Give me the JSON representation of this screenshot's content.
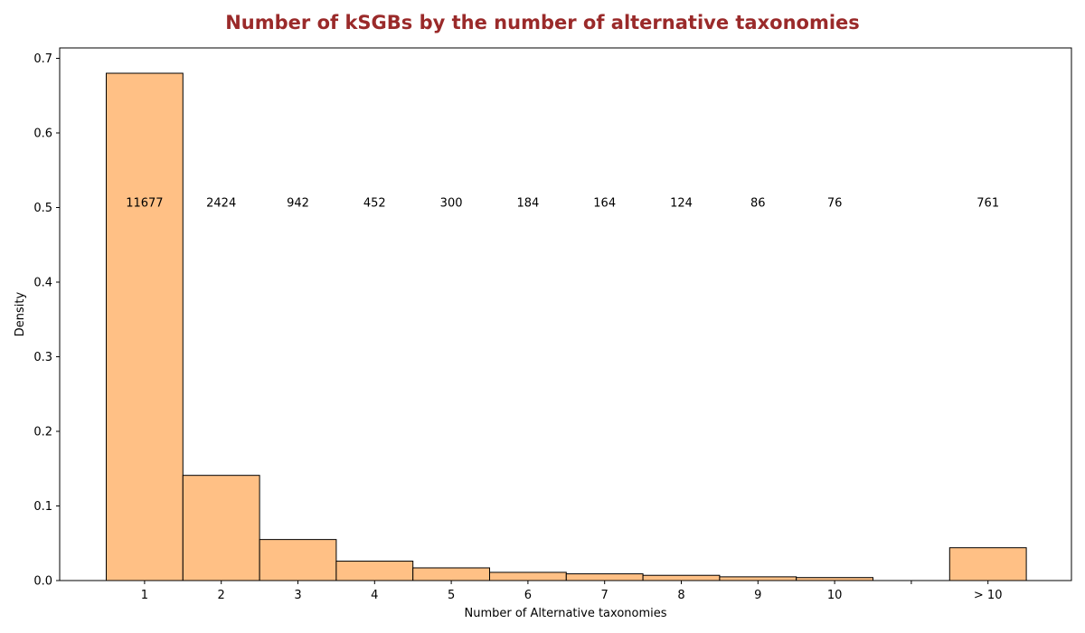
{
  "chart_data": {
    "type": "bar",
    "title": "Number of kSGBs by the number of alternative taxonomies",
    "xlabel": "Number of Alternative taxonomies",
    "ylabel": "Density",
    "categories": [
      "1",
      "2",
      "3",
      "4",
      "5",
      "6",
      "7",
      "8",
      "9",
      "10",
      "",
      "> 10"
    ],
    "values": [
      0.68,
      0.141,
      0.055,
      0.026,
      0.017,
      0.011,
      0.009,
      0.007,
      0.005,
      0.004,
      0.0,
      0.044
    ],
    "counts": [
      "11677",
      "2424",
      "942",
      "452",
      "300",
      "184",
      "164",
      "124",
      "86",
      "76",
      "",
      "761"
    ],
    "count_label_y": 0.5,
    "ylim": [
      0,
      0.7
    ],
    "yticks": [
      "0.0",
      "0.1",
      "0.2",
      "0.3",
      "0.4",
      "0.5",
      "0.6",
      "0.7"
    ],
    "grid": false,
    "colors": {
      "bar_fill": "#ffc085",
      "bar_edge": "#000000",
      "title": "#9a2a2a"
    }
  }
}
